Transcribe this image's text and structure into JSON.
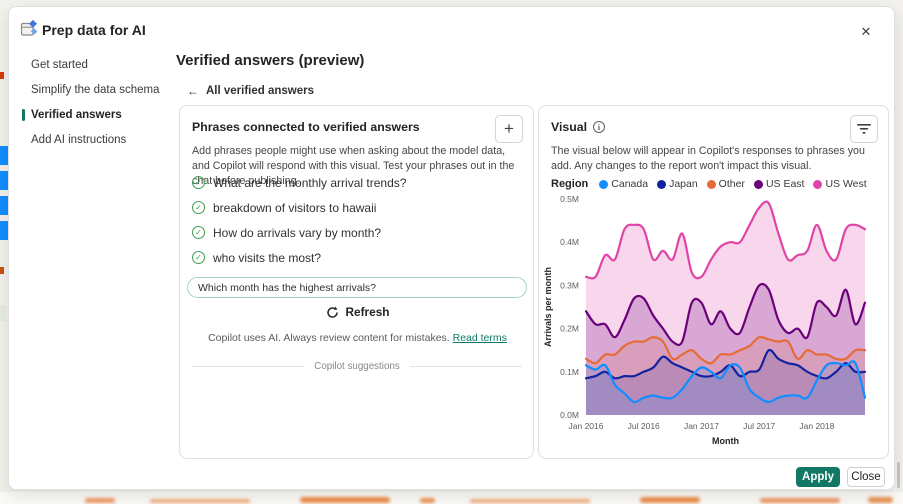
{
  "window": {
    "title": "Prep data for AI"
  },
  "icons": {
    "close": "✕",
    "back": "←",
    "plus": "+",
    "info": "i",
    "check": "✓"
  },
  "sidebar": {
    "items": [
      {
        "label": "Get started",
        "selected": false
      },
      {
        "label": "Simplify the data schema",
        "selected": false
      },
      {
        "label": "Verified answers",
        "selected": true
      },
      {
        "label": "Add AI instructions",
        "selected": false
      }
    ]
  },
  "main": {
    "heading": "Verified answers (preview)",
    "back_label": "All verified answers"
  },
  "phrases_card": {
    "title": "Phrases connected to verified answers",
    "description": "Add phrases people might use when asking about the model data, and Copilot will respond with this visual. Test your phrases out in the chat before publishing.",
    "phrases": [
      "What are the monthly arrival trends?",
      "breakdown of visitors to hawaii",
      "How do arrivals vary by month?",
      "who visits the most?"
    ],
    "suggestions_label": "Copilot suggestions",
    "input_value": "Which month has the highest arrivals?",
    "refresh_label": "Refresh",
    "disclaimer": "Copilot uses AI. Always review content for mistakes.",
    "read_terms": "Read terms"
  },
  "visual_card": {
    "title": "Visual",
    "description": "The visual below will appear in Copilot's responses to phrases you add. Any changes to the report won't impact this visual."
  },
  "footer": {
    "apply": "Apply",
    "close": "Close"
  },
  "colors": {
    "accent": "#117865",
    "check_green": "#3f9e54"
  },
  "chart_data": {
    "type": "area",
    "xlabel": "Month",
    "ylabel": "Arrivals per month",
    "legend_title": "Region",
    "legend_position": "top",
    "grid": false,
    "ylim": [
      0,
      500000
    ],
    "y_ticks": [
      "0.0M",
      "0.1M",
      "0.2M",
      "0.3M",
      "0.4M",
      "0.5M"
    ],
    "x_tick_labels": [
      "Jan 2016",
      "Jul 2016",
      "Jan 2017",
      "Jul 2017",
      "Jan 2018"
    ],
    "x_tick_indices": [
      0,
      6,
      12,
      18,
      24
    ],
    "months": 30,
    "series": [
      {
        "name": "Canada",
        "color": "#118DFF",
        "fill_opacity": 0.15,
        "values_M": [
          0.115,
          0.105,
          0.115,
          0.07,
          0.05,
          0.03,
          0.04,
          0.045,
          0.04,
          0.04,
          0.06,
          0.09,
          0.11,
          0.1,
          0.085,
          0.115,
          0.11,
          0.06,
          0.04,
          0.03,
          0.04,
          0.045,
          0.045,
          0.04,
          0.08,
          0.115,
          0.12,
          0.115,
          0.12,
          0.04
        ]
      },
      {
        "name": "Japan",
        "color": "#12239E",
        "fill_opacity": 0.15,
        "values_M": [
          0.085,
          0.09,
          0.1,
          0.085,
          0.09,
          0.09,
          0.1,
          0.11,
          0.135,
          0.12,
          0.11,
          0.1,
          0.09,
          0.09,
          0.1,
          0.115,
          0.09,
          0.1,
          0.105,
          0.15,
          0.13,
          0.12,
          0.115,
          0.1,
          0.09,
          0.085,
          0.1,
          0.12,
          0.1,
          0.1
        ]
      },
      {
        "name": "Other",
        "color": "#E66C37",
        "fill_opacity": 0.15,
        "values_M": [
          0.13,
          0.12,
          0.14,
          0.14,
          0.16,
          0.17,
          0.17,
          0.18,
          0.17,
          0.13,
          0.14,
          0.15,
          0.13,
          0.12,
          0.14,
          0.14,
          0.15,
          0.16,
          0.18,
          0.175,
          0.17,
          0.17,
          0.13,
          0.15,
          0.14,
          0.14,
          0.13,
          0.13,
          0.15,
          0.15
        ]
      },
      {
        "name": "US East",
        "color": "#6B007B",
        "fill_opacity": 0.22,
        "values_M": [
          0.24,
          0.21,
          0.21,
          0.18,
          0.22,
          0.27,
          0.27,
          0.23,
          0.2,
          0.17,
          0.17,
          0.26,
          0.26,
          0.21,
          0.24,
          0.2,
          0.19,
          0.25,
          0.3,
          0.29,
          0.22,
          0.19,
          0.2,
          0.18,
          0.26,
          0.25,
          0.23,
          0.29,
          0.21,
          0.26
        ]
      },
      {
        "name": "US West",
        "color": "#E044A7",
        "fill_opacity": 0.22,
        "values_M": [
          0.32,
          0.32,
          0.37,
          0.36,
          0.43,
          0.44,
          0.43,
          0.36,
          0.38,
          0.36,
          0.42,
          0.33,
          0.32,
          0.36,
          0.39,
          0.4,
          0.4,
          0.44,
          0.48,
          0.49,
          0.42,
          0.36,
          0.37,
          0.38,
          0.44,
          0.38,
          0.36,
          0.43,
          0.44,
          0.43
        ]
      }
    ]
  }
}
